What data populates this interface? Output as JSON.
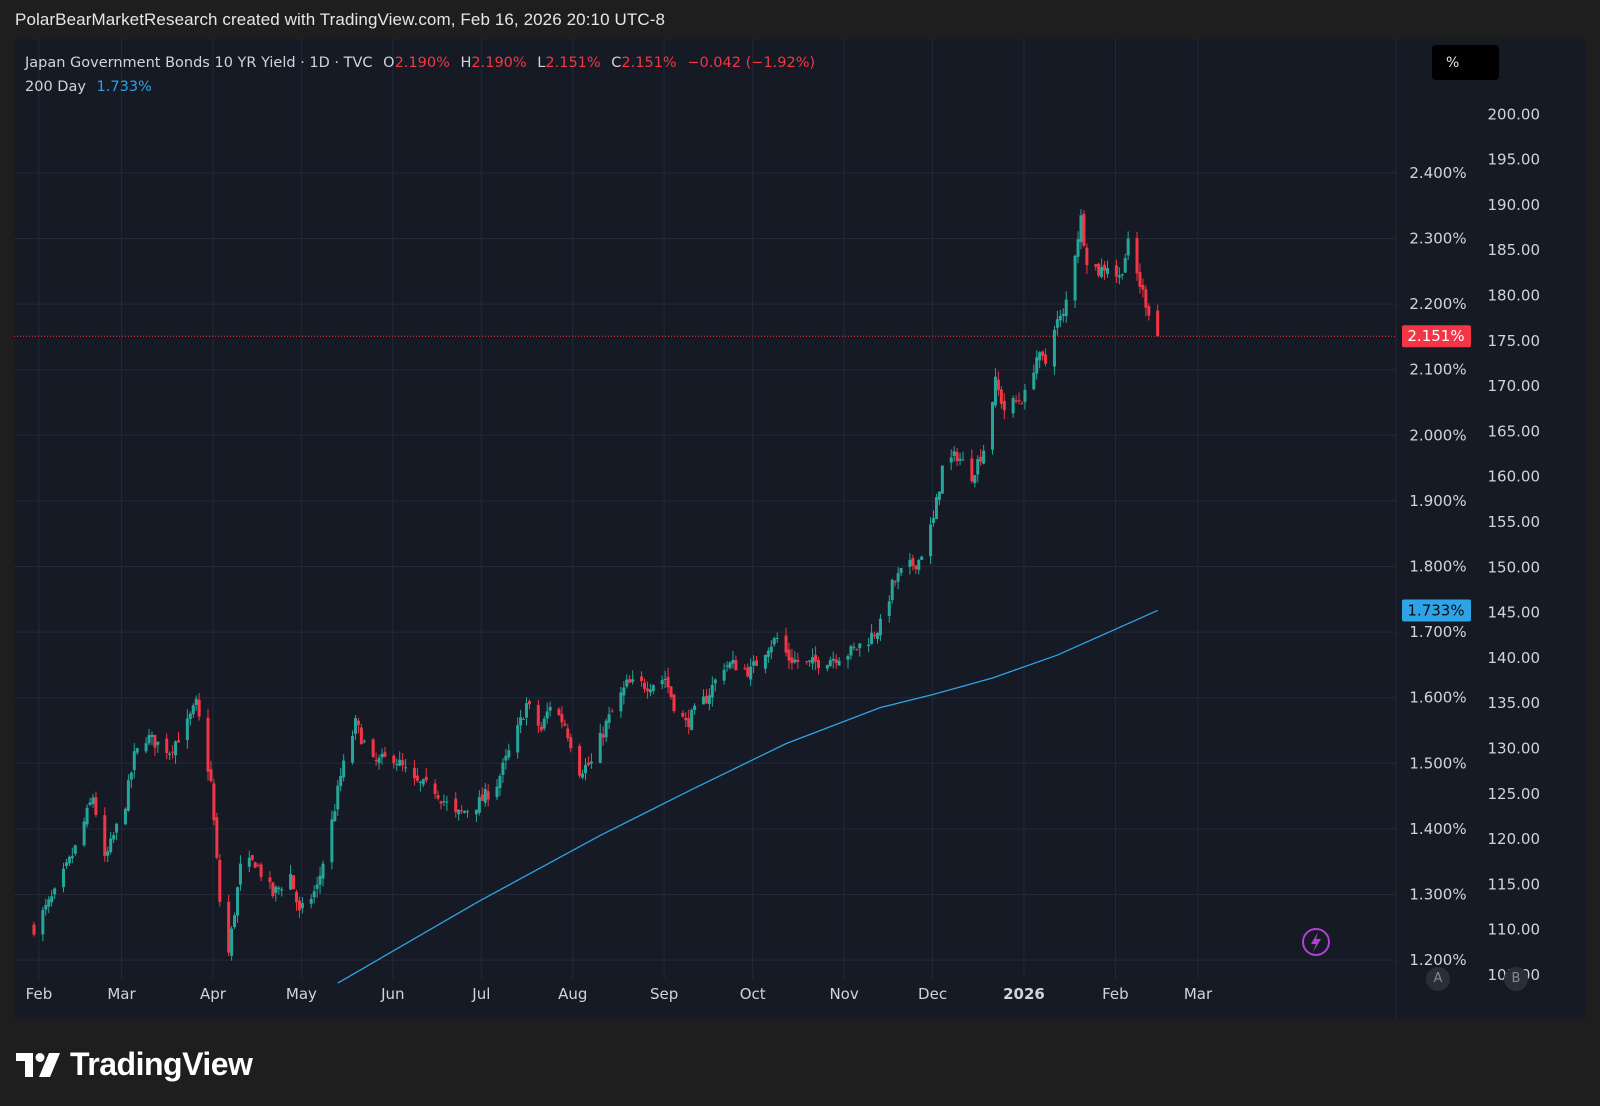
{
  "header": {
    "attribution": "PolarBearMarketResearch created with TradingView.com, Feb 16, 2026 20:10 UTC-8"
  },
  "legend": {
    "symbol": "Japan Government Bonds 10 YR Yield · 1D · TVC",
    "o_label": "O",
    "o_value": "2.190%",
    "h_label": "H",
    "h_value": "2.190%",
    "l_label": "L",
    "l_value": "2.151%",
    "c_label": "C",
    "c_value": "2.151%",
    "change": "−0.042 (−1.92%)",
    "ma_label": "200 Day",
    "ma_value": "1.733%"
  },
  "unit_button": "%",
  "axis_buttons": {
    "a": "A",
    "b": "B"
  },
  "brand": {
    "name": "TradingView"
  },
  "colors": {
    "up": "#26a69a",
    "down": "#f23645",
    "ma": "#2ea3e6",
    "background": "#161a25",
    "grid": "#232836",
    "text": "#d1d4dc"
  },
  "chart_data": {
    "type": "candlestick",
    "title": "Japan Government Bonds 10 YR Yield · 1D · TVC",
    "left_axis": {
      "unit": "%",
      "ticks": [
        "2.400%",
        "2.300%",
        "2.200%",
        "2.100%",
        "2.000%",
        "1.900%",
        "1.800%",
        "1.700%",
        "1.600%",
        "1.500%",
        "1.400%",
        "1.300%",
        "1.200%"
      ],
      "ylim": [
        1.165,
        2.535
      ]
    },
    "right_axis": {
      "ticks": [
        "200.00",
        "195.00",
        "190.00",
        "185.00",
        "180.00",
        "175.00",
        "170.00",
        "165.00",
        "160.00",
        "155.00",
        "150.00",
        "145.00",
        "140.00",
        "135.00",
        "130.00",
        "125.00",
        "120.00",
        "115.00",
        "110.00",
        "105.00"
      ]
    },
    "x_ticks": [
      {
        "label": "Feb",
        "bold": false
      },
      {
        "label": "Mar",
        "bold": false
      },
      {
        "label": "Apr",
        "bold": false
      },
      {
        "label": "May",
        "bold": false
      },
      {
        "label": "Jun",
        "bold": false
      },
      {
        "label": "Jul",
        "bold": false
      },
      {
        "label": "Aug",
        "bold": false
      },
      {
        "label": "Sep",
        "bold": false
      },
      {
        "label": "Oct",
        "bold": false
      },
      {
        "label": "Nov",
        "bold": false
      },
      {
        "label": "Dec",
        "bold": false
      },
      {
        "label": "2026",
        "bold": true
      },
      {
        "label": "Feb",
        "bold": false
      },
      {
        "label": "Mar",
        "bold": false
      }
    ],
    "last_price": {
      "value": 2.151,
      "label": "2.151%"
    },
    "ma": {
      "name": "200 Day",
      "value": 1.733,
      "label": "1.733%"
    },
    "series": [
      {
        "name": "close_anchors",
        "points": [
          [
            "2025-01-31",
            1.25
          ],
          [
            "2025-02-07",
            1.3
          ],
          [
            "2025-02-14",
            1.37
          ],
          [
            "2025-02-20",
            1.45
          ],
          [
            "2025-02-24",
            1.35
          ],
          [
            "2025-03-03",
            1.44
          ],
          [
            "2025-03-06",
            1.51
          ],
          [
            "2025-03-10",
            1.54
          ],
          [
            "2025-03-18",
            1.52
          ],
          [
            "2025-03-24",
            1.56
          ],
          [
            "2025-03-27",
            1.59
          ],
          [
            "2025-04-01",
            1.47
          ],
          [
            "2025-04-04",
            1.29
          ],
          [
            "2025-04-07",
            1.21
          ],
          [
            "2025-04-11",
            1.34
          ],
          [
            "2025-04-16",
            1.35
          ],
          [
            "2025-04-22",
            1.3
          ],
          [
            "2025-04-28",
            1.33
          ],
          [
            "2025-05-01",
            1.27
          ],
          [
            "2025-05-07",
            1.31
          ],
          [
            "2025-05-12",
            1.41
          ],
          [
            "2025-05-15",
            1.48
          ],
          [
            "2025-05-20",
            1.56
          ],
          [
            "2025-05-26",
            1.5
          ],
          [
            "2025-06-02",
            1.51
          ],
          [
            "2025-06-09",
            1.47
          ],
          [
            "2025-06-16",
            1.46
          ],
          [
            "2025-06-23",
            1.42
          ],
          [
            "2025-06-27",
            1.43
          ],
          [
            "2025-07-01",
            1.44
          ],
          [
            "2025-07-07",
            1.47
          ],
          [
            "2025-07-14",
            1.55
          ],
          [
            "2025-07-17",
            1.59
          ],
          [
            "2025-07-22",
            1.55
          ],
          [
            "2025-07-25",
            1.59
          ],
          [
            "2025-07-30",
            1.56
          ],
          [
            "2025-08-04",
            1.49
          ],
          [
            "2025-08-08",
            1.5
          ],
          [
            "2025-08-13",
            1.56
          ],
          [
            "2025-08-20",
            1.62
          ],
          [
            "2025-08-27",
            1.62
          ],
          [
            "2025-09-02",
            1.63
          ],
          [
            "2025-09-05",
            1.59
          ],
          [
            "2025-09-09",
            1.56
          ],
          [
            "2025-09-16",
            1.6
          ],
          [
            "2025-09-22",
            1.65
          ],
          [
            "2025-09-26",
            1.65
          ],
          [
            "2025-10-01",
            1.64
          ],
          [
            "2025-10-07",
            1.68
          ],
          [
            "2025-10-10",
            1.69
          ],
          [
            "2025-10-14",
            1.66
          ],
          [
            "2025-10-20",
            1.65
          ],
          [
            "2025-10-28",
            1.66
          ],
          [
            "2025-11-04",
            1.67
          ],
          [
            "2025-11-10",
            1.69
          ],
          [
            "2025-11-14",
            1.71
          ],
          [
            "2025-11-18",
            1.77
          ],
          [
            "2025-11-21",
            1.79
          ],
          [
            "2025-11-27",
            1.81
          ],
          [
            "2025-12-02",
            1.87
          ],
          [
            "2025-12-05",
            1.95
          ],
          [
            "2025-12-10",
            1.97
          ],
          [
            "2025-12-15",
            1.94
          ],
          [
            "2025-12-19",
            1.98
          ],
          [
            "2025-12-23",
            2.08
          ],
          [
            "2025-12-26",
            2.04
          ],
          [
            "2026-01-02",
            2.06
          ],
          [
            "2026-01-06",
            2.12
          ],
          [
            "2026-01-09",
            2.11
          ],
          [
            "2026-01-12",
            2.17
          ],
          [
            "2026-01-15",
            2.18
          ],
          [
            "2026-01-19",
            2.28
          ],
          [
            "2026-01-21",
            2.33
          ],
          [
            "2026-01-23",
            2.27
          ],
          [
            "2026-01-27",
            2.25
          ],
          [
            "2026-01-30",
            2.26
          ],
          [
            "2026-02-03",
            2.24
          ],
          [
            "2026-02-06",
            2.29
          ],
          [
            "2026-02-10",
            2.23
          ],
          [
            "2026-02-13",
            2.19
          ],
          [
            "2026-02-16",
            2.151
          ]
        ]
      },
      {
        "name": "200 Day",
        "points": [
          [
            "2025-05-14",
            1.165
          ],
          [
            "2025-07-01",
            1.29
          ],
          [
            "2025-08-11",
            1.39
          ],
          [
            "2025-09-11",
            1.46
          ],
          [
            "2025-10-13",
            1.53
          ],
          [
            "2025-11-14",
            1.585
          ],
          [
            "2025-12-02",
            1.605
          ],
          [
            "2025-12-22",
            1.63
          ],
          [
            "2026-01-13",
            1.665
          ],
          [
            "2026-02-02",
            1.705
          ],
          [
            "2026-02-16",
            1.733
          ]
        ]
      }
    ]
  }
}
